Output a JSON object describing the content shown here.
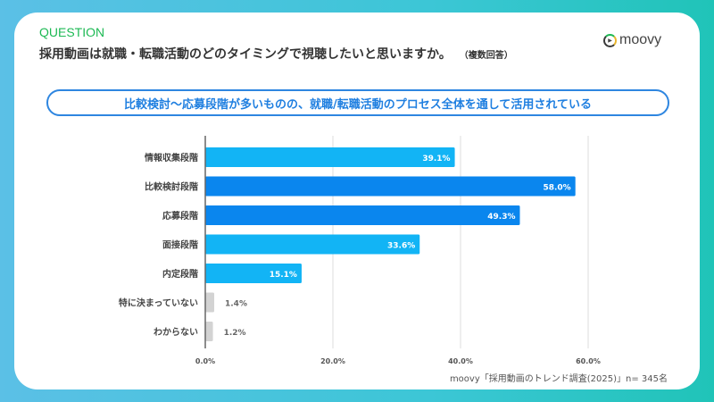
{
  "header": {
    "label": "QUESTION",
    "question": "採用動画は就職・転職活動のどのタイミングで視聴したいと思いますか。",
    "note": "（複数回答）",
    "logo": "moovy"
  },
  "banner": "比較検討〜応募段階が多いものの、就職/転職活動のプロセス全体を通して活用されている",
  "source": "moovy「採用動画のトレンド調査(2025)」n= 345名",
  "chart_data": {
    "type": "bar",
    "orientation": "horizontal",
    "categories": [
      "情報収集段階",
      "比較検討段階",
      "応募段階",
      "面接段階",
      "内定段階",
      "特に決まっていない",
      "わからない"
    ],
    "values": [
      39.1,
      58.0,
      49.3,
      33.6,
      15.1,
      1.4,
      1.2
    ],
    "data_labels": [
      "39.1%",
      "58.0%",
      "49.3%",
      "33.6%",
      "15.1%",
      "1.4%",
      "1.2%"
    ],
    "colors": [
      "#12b4f5",
      "#0a86ee",
      "#0a86ee",
      "#12b4f5",
      "#12b4f5",
      "#d3d3d3",
      "#d3d3d3"
    ],
    "xlim": [
      0,
      60
    ],
    "xticks": [
      0,
      20,
      40,
      60
    ],
    "xtick_labels": [
      "0.0%",
      "20.0%",
      "40.0%",
      "60.0%"
    ],
    "grid": true
  }
}
